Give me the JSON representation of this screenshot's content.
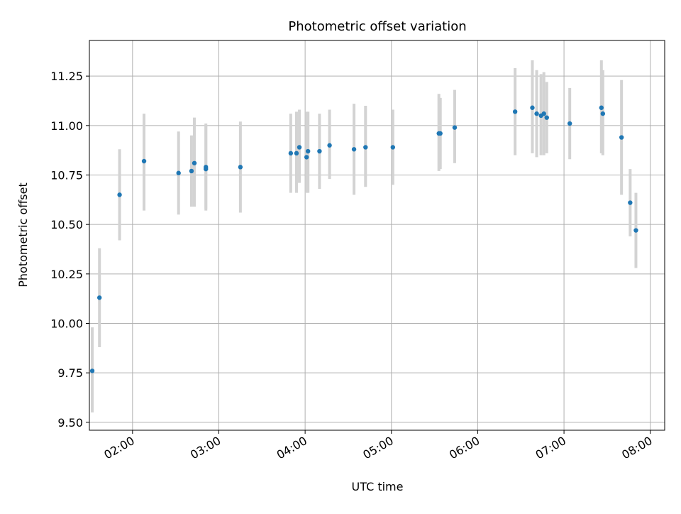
{
  "chart_data": {
    "type": "scatter",
    "title": "Photometric offset variation",
    "xlabel": "UTC time",
    "ylabel": "Photometric offset",
    "x_ticks": [
      "02:00",
      "03:00",
      "04:00",
      "05:00",
      "06:00",
      "07:00",
      "08:00"
    ],
    "y_ticks": [
      "9.50",
      "9.75",
      "10.00",
      "10.25",
      "10.50",
      "10.75",
      "11.00",
      "11.25"
    ],
    "xlim": [
      "01:30",
      "08:10"
    ],
    "ylim": [
      9.46,
      11.43
    ],
    "grid": true,
    "marker_color": "#1f77b4",
    "errorbar_color": "#d3d3d3",
    "points": [
      {
        "t": "01:32",
        "y": 9.76,
        "lo": 9.55,
        "hi": 9.98
      },
      {
        "t": "01:37",
        "y": 10.13,
        "lo": 9.88,
        "hi": 10.38
      },
      {
        "t": "01:51",
        "y": 10.65,
        "lo": 10.42,
        "hi": 10.88
      },
      {
        "t": "02:08",
        "y": 10.82,
        "lo": 10.57,
        "hi": 11.06
      },
      {
        "t": "02:32",
        "y": 10.76,
        "lo": 10.55,
        "hi": 10.97
      },
      {
        "t": "02:41",
        "y": 10.77,
        "lo": 10.59,
        "hi": 10.95
      },
      {
        "t": "02:43",
        "y": 10.81,
        "lo": 10.59,
        "hi": 11.04
      },
      {
        "t": "02:51",
        "y": 10.78,
        "lo": 10.57,
        "hi": 11.0
      },
      {
        "t": "02:51",
        "y": 10.79,
        "lo": 10.58,
        "hi": 11.01
      },
      {
        "t": "03:15",
        "y": 10.79,
        "lo": 10.56,
        "hi": 11.02
      },
      {
        "t": "03:50",
        "y": 10.86,
        "lo": 10.66,
        "hi": 11.06
      },
      {
        "t": "03:54",
        "y": 10.86,
        "lo": 10.66,
        "hi": 11.07
      },
      {
        "t": "03:56",
        "y": 10.89,
        "lo": 10.71,
        "hi": 11.08
      },
      {
        "t": "04:01",
        "y": 10.84,
        "lo": 10.66,
        "hi": 11.07
      },
      {
        "t": "04:02",
        "y": 10.87,
        "lo": 10.66,
        "hi": 11.07
      },
      {
        "t": "04:10",
        "y": 10.87,
        "lo": 10.68,
        "hi": 11.06
      },
      {
        "t": "04:17",
        "y": 10.9,
        "lo": 10.73,
        "hi": 11.08
      },
      {
        "t": "04:34",
        "y": 10.88,
        "lo": 10.65,
        "hi": 11.11
      },
      {
        "t": "04:42",
        "y": 10.89,
        "lo": 10.69,
        "hi": 11.1
      },
      {
        "t": "05:01",
        "y": 10.89,
        "lo": 10.7,
        "hi": 11.08
      },
      {
        "t": "05:33",
        "y": 10.96,
        "lo": 10.77,
        "hi": 11.16
      },
      {
        "t": "05:34",
        "y": 10.96,
        "lo": 10.78,
        "hi": 11.14
      },
      {
        "t": "05:44",
        "y": 10.99,
        "lo": 10.81,
        "hi": 11.18
      },
      {
        "t": "06:26",
        "y": 11.07,
        "lo": 10.85,
        "hi": 11.29
      },
      {
        "t": "06:38",
        "y": 11.09,
        "lo": 10.86,
        "hi": 11.33
      },
      {
        "t": "06:41",
        "y": 11.06,
        "lo": 10.84,
        "hi": 11.28
      },
      {
        "t": "06:44",
        "y": 11.05,
        "lo": 10.85,
        "hi": 11.26
      },
      {
        "t": "06:46",
        "y": 11.06,
        "lo": 10.85,
        "hi": 11.27
      },
      {
        "t": "06:48",
        "y": 11.04,
        "lo": 10.86,
        "hi": 11.22
      },
      {
        "t": "07:04",
        "y": 11.01,
        "lo": 10.83,
        "hi": 11.19
      },
      {
        "t": "07:26",
        "y": 11.09,
        "lo": 10.86,
        "hi": 11.33
      },
      {
        "t": "07:27",
        "y": 11.06,
        "lo": 10.85,
        "hi": 11.28
      },
      {
        "t": "07:40",
        "y": 10.94,
        "lo": 10.65,
        "hi": 11.23
      },
      {
        "t": "07:46",
        "y": 10.61,
        "lo": 10.44,
        "hi": 10.78
      },
      {
        "t": "07:50",
        "y": 10.47,
        "lo": 10.28,
        "hi": 10.66
      }
    ]
  }
}
